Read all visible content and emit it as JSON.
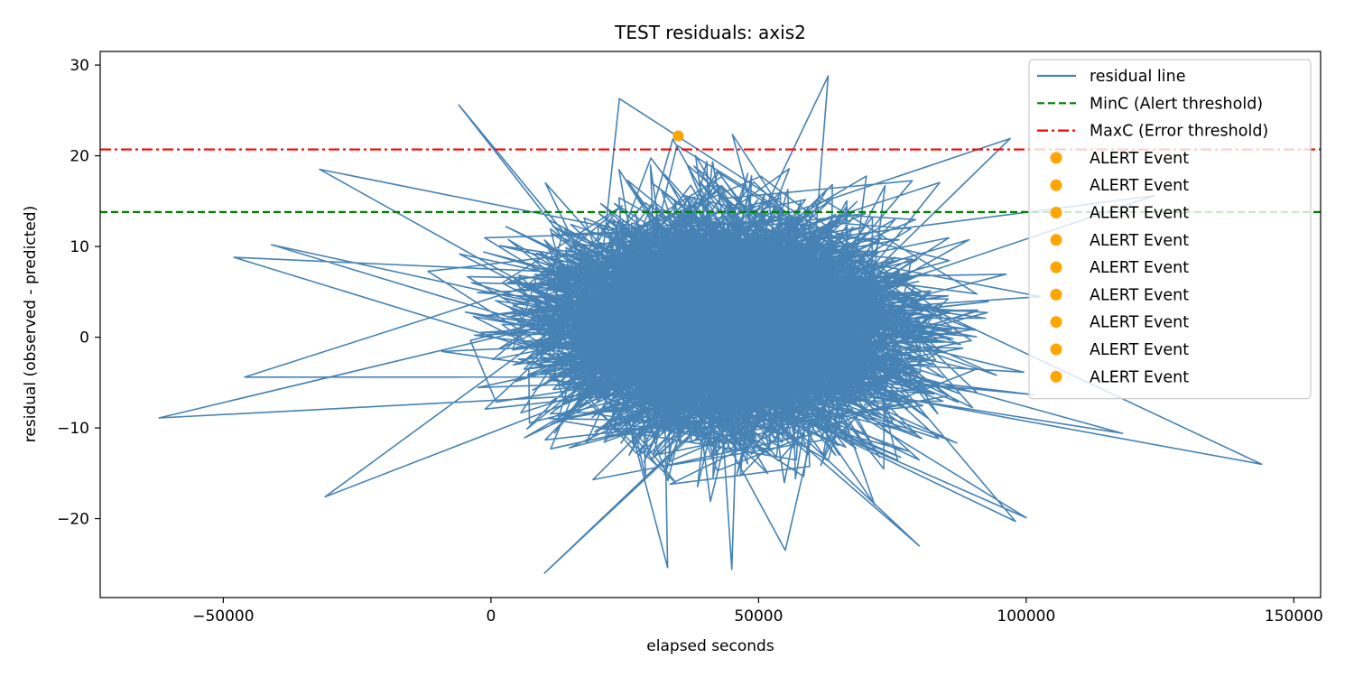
{
  "chart_data": {
    "type": "line",
    "title": "TEST residuals: axis2",
    "xlabel": "elapsed seconds",
    "ylabel": "residual (observed - predicted)",
    "xlim": [
      -73000,
      155000
    ],
    "ylim": [
      -28.7,
      31.5
    ],
    "xticks": [
      -50000,
      0,
      50000,
      100000,
      150000
    ],
    "xtick_labels": [
      "−50000",
      "0",
      "50000",
      "100000",
      "150000"
    ],
    "yticks": [
      -20,
      -10,
      0,
      10,
      20,
      30
    ],
    "ytick_labels": [
      "−20",
      "−10",
      "0",
      "10",
      "20",
      "30"
    ],
    "grid": false,
    "legend_position": "top-right",
    "thresholds": {
      "min_c": {
        "name": "MinC (Alert threshold)",
        "value": 13.8,
        "color": "#008000",
        "style": "dashed"
      },
      "max_c": {
        "name": "MaxC (Error threshold)",
        "value": 20.7,
        "color": "#ff0000",
        "style": "dashdot"
      }
    },
    "residual_series": {
      "name": "residual line",
      "color": "#4682b4",
      "approx_points": [
        [
          -62000,
          -8.9
        ],
        [
          -48000,
          8.8
        ],
        [
          -46000,
          -4.4
        ],
        [
          -41000,
          10.2
        ],
        [
          -32000,
          18.5
        ],
        [
          -31000,
          -17.6
        ],
        [
          -6000,
          25.6
        ],
        [
          10000,
          -26.0
        ],
        [
          24000,
          26.3
        ],
        [
          33000,
          -25.4
        ],
        [
          45000,
          -25.6
        ],
        [
          55000,
          -23.5
        ],
        [
          63000,
          28.8
        ],
        [
          80000,
          -23.0
        ],
        [
          97000,
          21.9
        ],
        [
          98000,
          -20.3
        ],
        [
          100000,
          -19.9
        ],
        [
          118000,
          -10.6
        ],
        [
          124000,
          15.6
        ],
        [
          144000,
          -14.0
        ]
      ],
      "cloud_x_range": [
        -35000,
        125000
      ],
      "cloud_y_range": [
        -26,
        29
      ]
    },
    "alert_events": {
      "name": "ALERT Event",
      "color": "#ffa500",
      "legend_entries": 9,
      "visible_points": [
        [
          35000,
          22.2
        ]
      ]
    },
    "legend": [
      {
        "label": "residual line",
        "kind": "line",
        "color": "#4682b4"
      },
      {
        "label": "MinC (Alert threshold)",
        "kind": "dashed",
        "color": "#008000"
      },
      {
        "label": "MaxC (Error threshold)",
        "kind": "dashdot",
        "color": "#ff0000"
      },
      {
        "label": "ALERT Event",
        "kind": "marker",
        "color": "#ffa500"
      },
      {
        "label": "ALERT Event",
        "kind": "marker",
        "color": "#ffa500"
      },
      {
        "label": "ALERT Event",
        "kind": "marker",
        "color": "#ffa500"
      },
      {
        "label": "ALERT Event",
        "kind": "marker",
        "color": "#ffa500"
      },
      {
        "label": "ALERT Event",
        "kind": "marker",
        "color": "#ffa500"
      },
      {
        "label": "ALERT Event",
        "kind": "marker",
        "color": "#ffa500"
      },
      {
        "label": "ALERT Event",
        "kind": "marker",
        "color": "#ffa500"
      },
      {
        "label": "ALERT Event",
        "kind": "marker",
        "color": "#ffa500"
      },
      {
        "label": "ALERT Event",
        "kind": "marker",
        "color": "#ffa500"
      }
    ]
  }
}
